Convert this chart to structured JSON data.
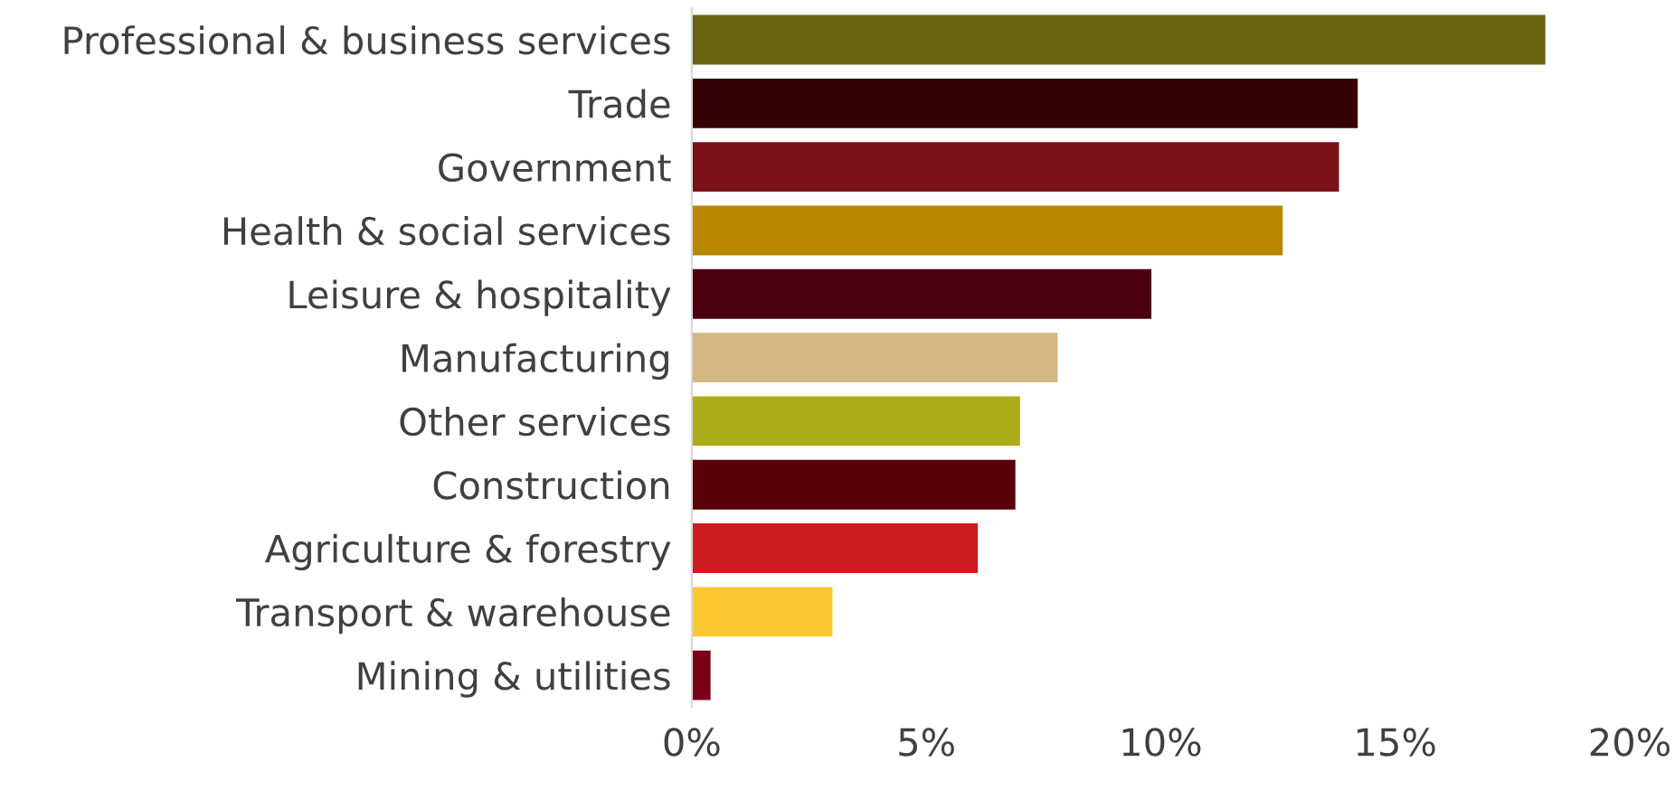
{
  "chart_data": {
    "type": "bar",
    "orientation": "horizontal",
    "categories": [
      "Professional & business services",
      "Trade",
      "Government",
      "Health & social services",
      "Leisure & hospitality",
      "Manufacturing",
      "Other services",
      "Construction",
      "Agriculture & forestry",
      "Transport & warehouse",
      "Mining & utilities"
    ],
    "values": [
      18.2,
      14.2,
      13.8,
      12.6,
      9.8,
      7.8,
      7.0,
      6.9,
      6.1,
      3.0,
      0.4
    ],
    "colors": [
      "#686410",
      "#330005",
      "#7b1016",
      "#b88800",
      "#4a0010",
      "#d2b683",
      "#adac1a",
      "#590008",
      "#cd1b20",
      "#fec72f",
      "#7a0018"
    ],
    "xlim": [
      0,
      20
    ],
    "xticks": [
      {
        "value": 0,
        "label": "0%"
      },
      {
        "value": 5,
        "label": "5%"
      },
      {
        "value": 10,
        "label": "10%"
      },
      {
        "value": 15,
        "label": "15%"
      },
      {
        "value": 20,
        "label": "20%"
      }
    ],
    "grid": false,
    "legend": false
  }
}
